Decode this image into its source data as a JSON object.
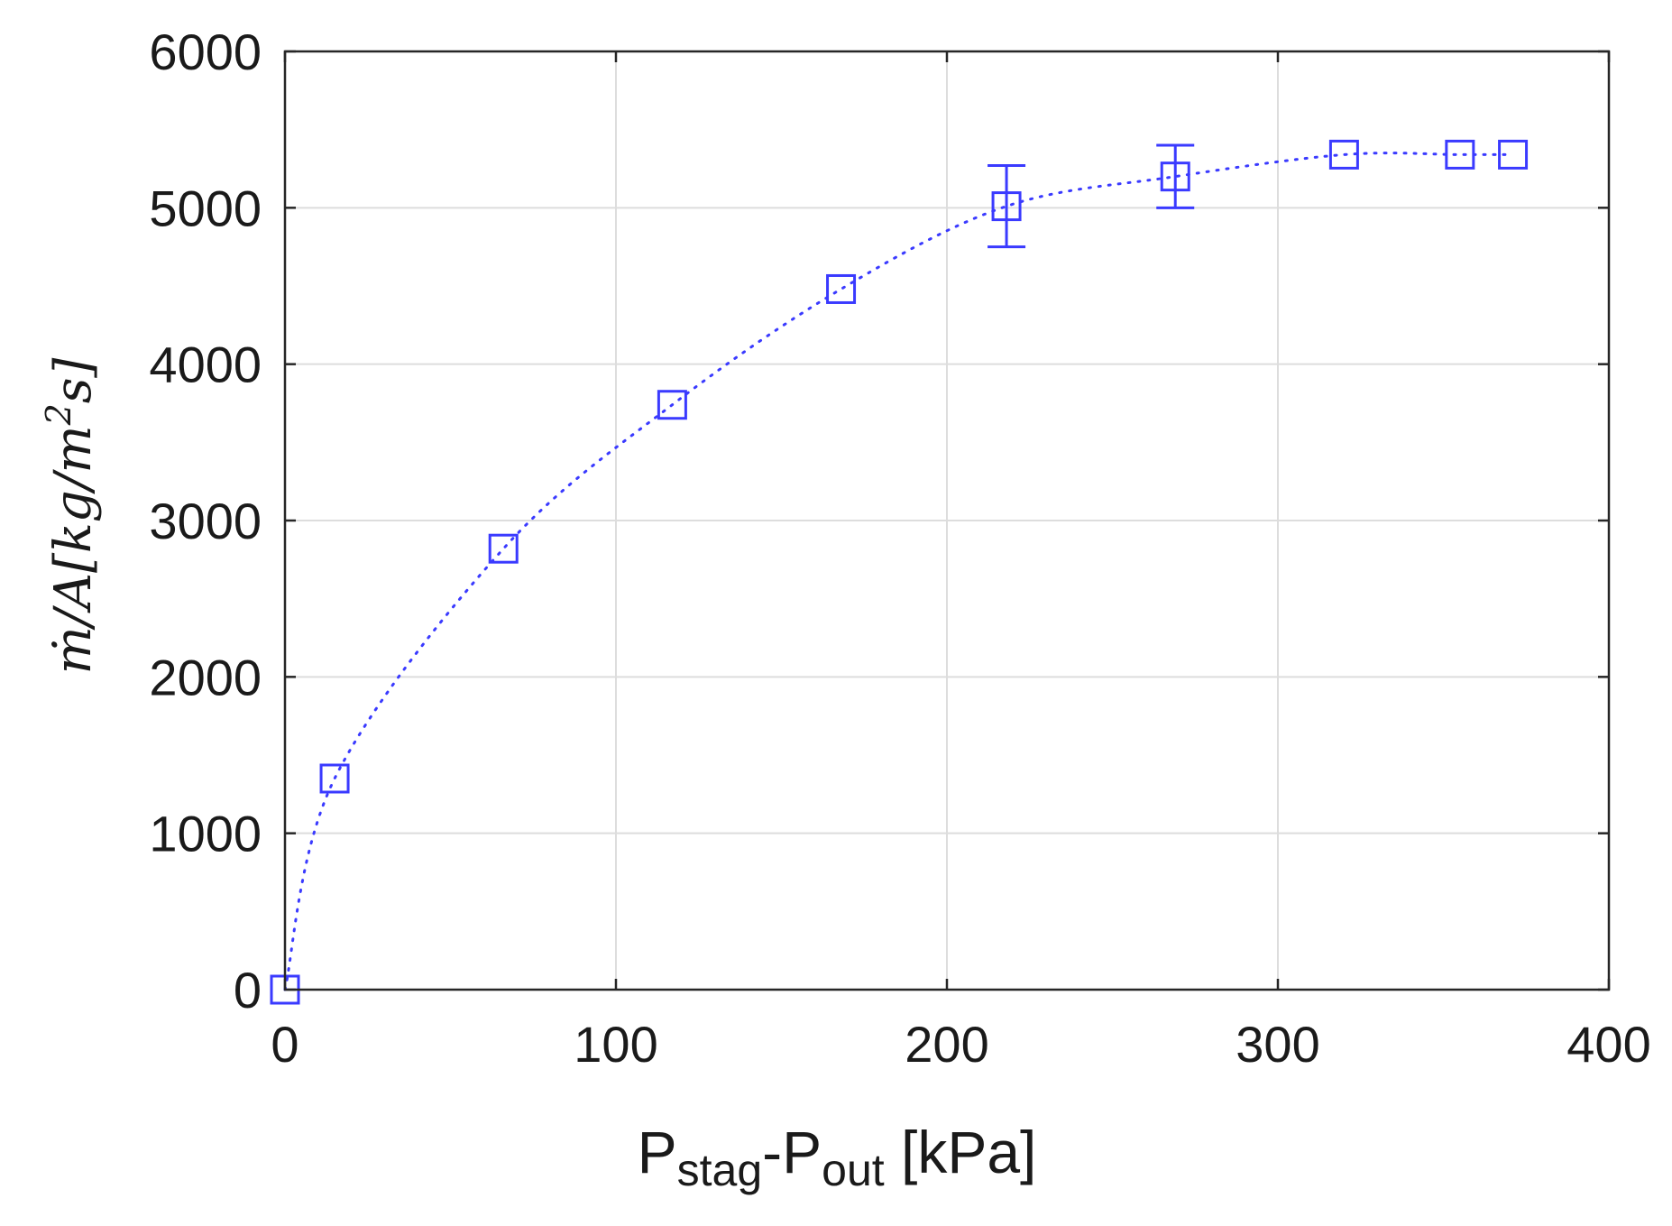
{
  "chart_data": {
    "type": "scatter",
    "title": "",
    "xlabel": {
      "parts": [
        {
          "text": "P",
          "sub": false
        },
        {
          "text": "stag",
          "sub": true
        },
        {
          "text": "-P",
          "sub": false
        },
        {
          "text": "out",
          "sub": true
        },
        {
          "text": " [kPa]",
          "sub": false
        }
      ]
    },
    "ylabel": {
      "main": "ṁ/A[kg/m",
      "sup": "2",
      "tail": "s]"
    },
    "xlim": [
      0,
      400
    ],
    "ylim": [
      0,
      6000
    ],
    "xticks": [
      0,
      100,
      200,
      300,
      400
    ],
    "yticks": [
      0,
      1000,
      2000,
      3000,
      4000,
      5000,
      6000
    ],
    "grid": true,
    "marker": "open-square",
    "line_style": "dotted",
    "color": "#3a3aff",
    "series": [
      {
        "x": [
          0,
          15,
          66,
          117,
          168,
          218,
          269,
          320,
          355,
          371
        ],
        "y": [
          0,
          1350,
          2820,
          3740,
          4480,
          5010,
          5200,
          5340,
          5340,
          5340
        ],
        "yerr": [
          0,
          0,
          0,
          0,
          0,
          260,
          200,
          0,
          0,
          0
        ]
      }
    ]
  }
}
